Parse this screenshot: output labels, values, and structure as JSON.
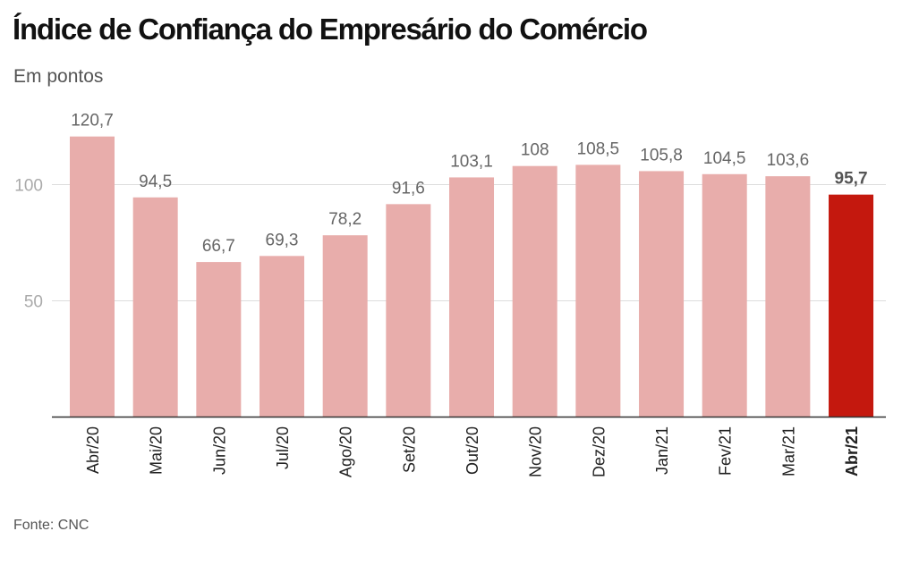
{
  "chart_data": {
    "type": "bar",
    "title": "Índice de Confiança do Empresário do Comércio",
    "subtitle": "Em pontos",
    "source": "Fonte: CNC",
    "categories": [
      "Abr/20",
      "Mai/20",
      "Jun/20",
      "Jul/20",
      "Ago/20",
      "Set/20",
      "Out/20",
      "Nov/20",
      "Dez/20",
      "Jan/21",
      "Fev/21",
      "Mar/21",
      "Abr/21"
    ],
    "values": [
      120.7,
      94.5,
      66.7,
      69.3,
      78.2,
      91.6,
      103.1,
      108,
      108.5,
      105.8,
      104.5,
      103.6,
      95.7
    ],
    "value_labels": [
      "120,7",
      "94,5",
      "66,7",
      "69,3",
      "78,2",
      "91,6",
      "103,1",
      "108",
      "108,5",
      "105,8",
      "104,5",
      "103,6",
      "95,7"
    ],
    "highlight_index": 12,
    "yticks": [
      50,
      100
    ],
    "ytick_labels": [
      "50",
      "100"
    ],
    "ylim": [
      0,
      125
    ],
    "grid": true,
    "colors": {
      "bar": "#e8adab",
      "highlight": "#c4180e",
      "grid": "#dddddd",
      "axis": "#333333"
    }
  }
}
